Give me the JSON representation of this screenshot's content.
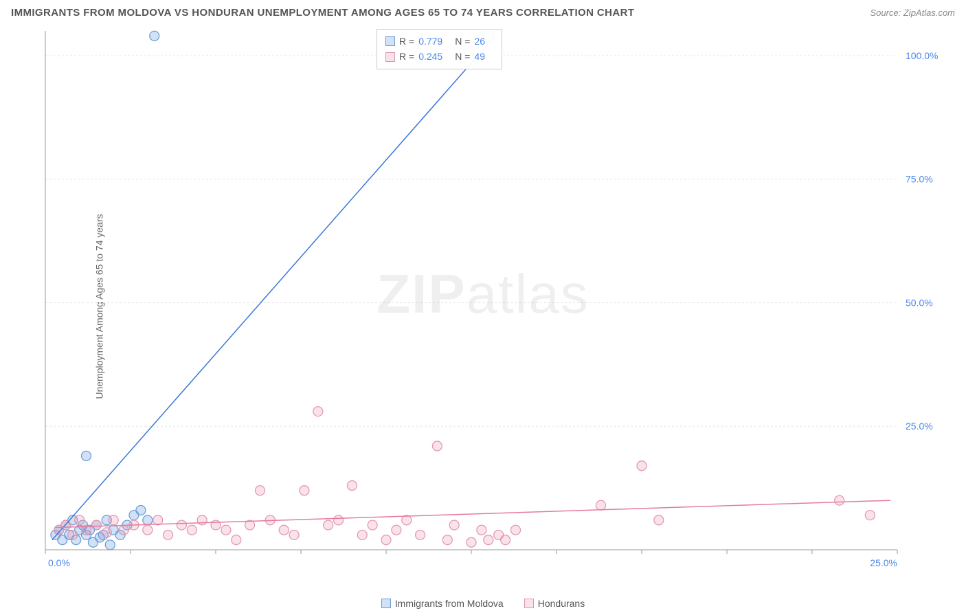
{
  "title": "IMMIGRANTS FROM MOLDOVA VS HONDURAN UNEMPLOYMENT AMONG AGES 65 TO 74 YEARS CORRELATION CHART",
  "source": "Source: ZipAtlas.com",
  "y_axis_label": "Unemployment Among Ages 65 to 74 years",
  "watermark": "ZIPatlas",
  "chart": {
    "type": "scatter",
    "xlim": [
      0,
      25
    ],
    "ylim": [
      0,
      105
    ],
    "x_ticks": [
      0,
      25
    ],
    "x_tick_labels": [
      "0.0%",
      "25.0%"
    ],
    "y_ticks": [
      25,
      50,
      75,
      100
    ],
    "y_tick_labels": [
      "25.0%",
      "50.0%",
      "75.0%",
      "100.0%"
    ],
    "grid_color": "#e5e5e5",
    "axis_color": "#999",
    "x_minor_step": 2.5,
    "y_label_color": "#4a86e8",
    "background": "#ffffff",
    "marker_radius": 7,
    "marker_stroke_width": 1.2,
    "trendline_width": 1.5
  },
  "series": [
    {
      "name": "Immigrants from Moldova",
      "fill": "rgba(122,169,230,0.35)",
      "stroke": "#6a9ad6",
      "trend_stroke": "#3b78d8",
      "R": "0.779",
      "N": "26",
      "trendline": {
        "x1": 0.2,
        "y1": 2,
        "x2": 13.2,
        "y2": 104
      },
      "points": [
        {
          "x": 0.3,
          "y": 3
        },
        {
          "x": 0.4,
          "y": 4
        },
        {
          "x": 0.5,
          "y": 2
        },
        {
          "x": 0.6,
          "y": 5
        },
        {
          "x": 0.7,
          "y": 3
        },
        {
          "x": 0.8,
          "y": 6
        },
        {
          "x": 0.9,
          "y": 2
        },
        {
          "x": 1.0,
          "y": 4
        },
        {
          "x": 1.1,
          "y": 5
        },
        {
          "x": 1.2,
          "y": 3
        },
        {
          "x": 1.2,
          "y": 19
        },
        {
          "x": 1.3,
          "y": 4
        },
        {
          "x": 1.4,
          "y": 1.5
        },
        {
          "x": 1.5,
          "y": 5
        },
        {
          "x": 1.6,
          "y": 2.5
        },
        {
          "x": 1.8,
          "y": 6
        },
        {
          "x": 1.9,
          "y": 1
        },
        {
          "x": 2.0,
          "y": 4
        },
        {
          "x": 2.2,
          "y": 3
        },
        {
          "x": 2.4,
          "y": 5
        },
        {
          "x": 2.6,
          "y": 7
        },
        {
          "x": 2.8,
          "y": 8
        },
        {
          "x": 3.0,
          "y": 6
        },
        {
          "x": 3.2,
          "y": 104
        },
        {
          "x": 13.0,
          "y": 104
        },
        {
          "x": 1.7,
          "y": 3
        }
      ]
    },
    {
      "name": "Hondurans",
      "fill": "rgba(235,150,175,0.28)",
      "stroke": "#e394ad",
      "trend_stroke": "#e57ba0",
      "R": "0.245",
      "N": "49",
      "trendline": {
        "x1": 0.3,
        "y1": 4.5,
        "x2": 24.8,
        "y2": 10
      },
      "points": [
        {
          "x": 0.4,
          "y": 4
        },
        {
          "x": 0.6,
          "y": 5
        },
        {
          "x": 0.8,
          "y": 3
        },
        {
          "x": 1.0,
          "y": 6
        },
        {
          "x": 1.2,
          "y": 4
        },
        {
          "x": 1.5,
          "y": 5
        },
        {
          "x": 1.8,
          "y": 3.5
        },
        {
          "x": 2.0,
          "y": 6
        },
        {
          "x": 2.3,
          "y": 4
        },
        {
          "x": 2.6,
          "y": 5
        },
        {
          "x": 3.0,
          "y": 4
        },
        {
          "x": 3.3,
          "y": 6
        },
        {
          "x": 3.6,
          "y": 3
        },
        {
          "x": 4.0,
          "y": 5
        },
        {
          "x": 4.3,
          "y": 4
        },
        {
          "x": 4.6,
          "y": 6
        },
        {
          "x": 5.0,
          "y": 5
        },
        {
          "x": 5.3,
          "y": 4
        },
        {
          "x": 5.6,
          "y": 2
        },
        {
          "x": 6.0,
          "y": 5
        },
        {
          "x": 6.3,
          "y": 12
        },
        {
          "x": 6.6,
          "y": 6
        },
        {
          "x": 7.0,
          "y": 4
        },
        {
          "x": 7.3,
          "y": 3
        },
        {
          "x": 7.6,
          "y": 12
        },
        {
          "x": 8.0,
          "y": 28
        },
        {
          "x": 8.3,
          "y": 5
        },
        {
          "x": 8.6,
          "y": 6
        },
        {
          "x": 9.0,
          "y": 13
        },
        {
          "x": 9.3,
          "y": 3
        },
        {
          "x": 9.6,
          "y": 5
        },
        {
          "x": 10.0,
          "y": 2
        },
        {
          "x": 10.3,
          "y": 4
        },
        {
          "x": 10.6,
          "y": 6
        },
        {
          "x": 11.0,
          "y": 3
        },
        {
          "x": 11.5,
          "y": 21
        },
        {
          "x": 11.8,
          "y": 2
        },
        {
          "x": 12.0,
          "y": 5
        },
        {
          "x": 12.5,
          "y": 1.5
        },
        {
          "x": 12.8,
          "y": 4
        },
        {
          "x": 13.0,
          "y": 2
        },
        {
          "x": 13.3,
          "y": 3
        },
        {
          "x": 13.5,
          "y": 2
        },
        {
          "x": 13.8,
          "y": 4
        },
        {
          "x": 16.3,
          "y": 9
        },
        {
          "x": 17.5,
          "y": 17
        },
        {
          "x": 18.0,
          "y": 6
        },
        {
          "x": 23.3,
          "y": 10
        },
        {
          "x": 24.2,
          "y": 7
        }
      ]
    }
  ],
  "xlegend": {
    "s1": "Immigrants from Moldova",
    "s2": "Hondurans"
  }
}
